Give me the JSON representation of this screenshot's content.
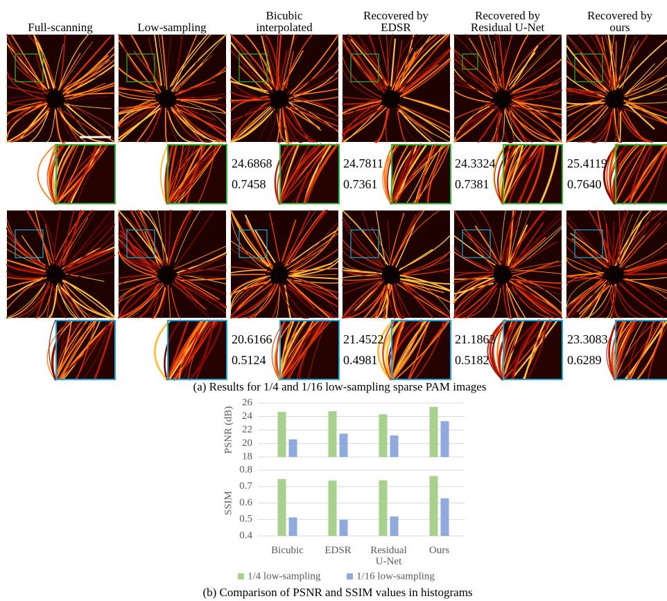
{
  "figure_a": {
    "headers": [
      [
        "Full-scanning"
      ],
      [
        "Low-sampling"
      ],
      [
        "Bicubic",
        "interpolated"
      ],
      [
        "Recovered by",
        "EDSR"
      ],
      [
        "Recovered by",
        "Residual U-Net"
      ],
      [
        "Recovered by",
        "ours"
      ]
    ],
    "rows": [
      {
        "box_color": "#2db82d",
        "metrics": [
          [
            "24.6868",
            "0.7458"
          ],
          [
            "24.7811",
            "0.7361"
          ],
          [
            "24.3324",
            "0.7381"
          ],
          [
            "25.4119",
            "0.7640"
          ]
        ]
      },
      {
        "box_color": "#1aa8d8",
        "metrics": [
          [
            "20.6166",
            "0.5124"
          ],
          [
            "21.4522",
            "0.4981"
          ],
          [
            "21.1863",
            "0.5182"
          ],
          [
            "23.3083",
            "0.6289"
          ]
        ]
      }
    ],
    "caption": "(a) Results for 1/4 and 1/16 low-sampling sparse PAM images"
  },
  "chart_data": [
    {
      "type": "bar",
      "ylabel": "PSNR (dB)",
      "ylim": [
        18,
        26
      ],
      "yticks": [
        18,
        20,
        22,
        24,
        26
      ],
      "grid": true,
      "series": [
        {
          "color": "#a9d18e",
          "values": [
            24.6868,
            24.7811,
            24.3324,
            25.4119
          ]
        },
        {
          "color": "#8faadc",
          "values": [
            20.6166,
            21.4522,
            21.1863,
            23.3083
          ]
        }
      ]
    },
    {
      "type": "bar",
      "ylabel": "SSIM",
      "ylim": [
        0.4,
        0.8
      ],
      "yticks": [
        0.4,
        0.5,
        0.6,
        0.7,
        0.8
      ],
      "grid": true,
      "categories": [
        "Bicubic",
        "EDSR",
        "Residual U-Net",
        "Ours"
      ],
      "series": [
        {
          "name": "1/4 low-sampling",
          "color": "#a9d18e",
          "values": [
            0.7458,
            0.7361,
            0.7381,
            0.764
          ]
        },
        {
          "name": "1/16 low-sampling",
          "color": "#8faadc",
          "values": [
            0.5124,
            0.4981,
            0.5182,
            0.6289
          ]
        }
      ]
    }
  ],
  "caption_b": "(b) Comparison of PSNR and SSIM values in histograms"
}
